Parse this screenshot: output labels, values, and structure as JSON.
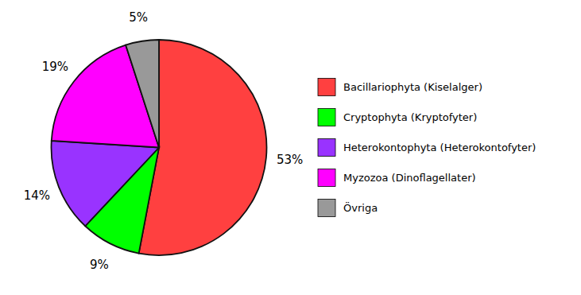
{
  "chart_data": {
    "type": "pie",
    "categories": [
      "Bacillariophyta (Kiselalger)",
      "Cryptophyta (Kryptofyter)",
      "Heterokontophyta (Heterokontofyter)",
      "Myzozoa (Dinoflagellater)",
      "Övriga"
    ],
    "values": [
      53,
      9,
      14,
      19,
      5
    ],
    "value_labels": [
      "53%",
      "9%",
      "14%",
      "19%",
      "5%"
    ],
    "colors": [
      "#FF4040",
      "#00FF00",
      "#9933FF",
      "#FF00FF",
      "#999999"
    ],
    "data_labels": true,
    "legend": "right"
  }
}
